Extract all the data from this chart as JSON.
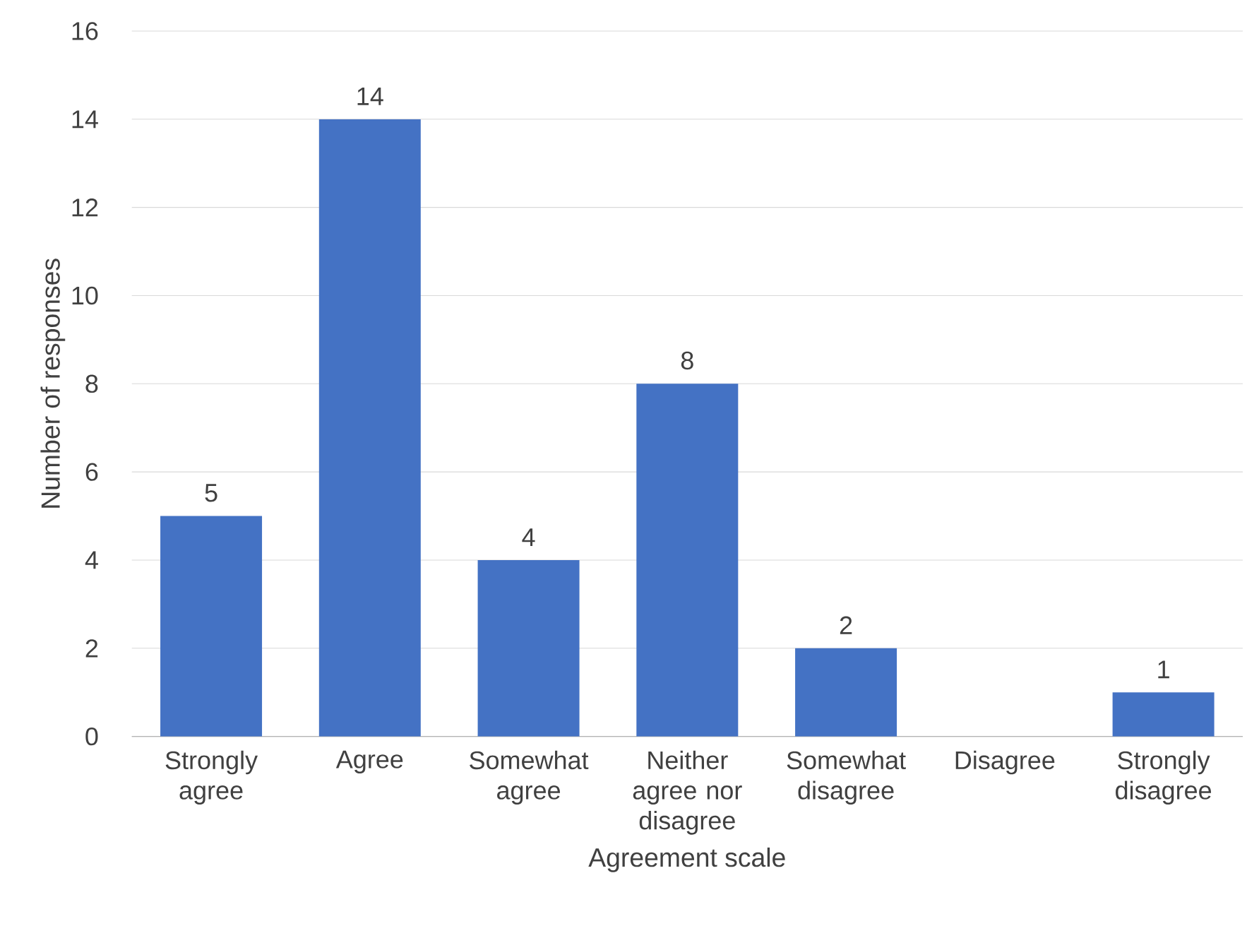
{
  "chart_data": {
    "type": "bar",
    "xlabel": "Agreement scale",
    "ylabel": "Number of responses",
    "categories": [
      "Strongly agree",
      "Agree",
      "Somewhat agree",
      "Neither agree nor disagree",
      "Somewhat disagree",
      "Disagree",
      "Strongly disagree"
    ],
    "values": [
      5,
      14,
      4,
      8,
      2,
      0,
      1
    ],
    "value_labels": [
      "5",
      "14",
      "4",
      "8",
      "2",
      null,
      "1"
    ],
    "color": "#4472c4",
    "ylim": [
      0,
      16
    ],
    "yticks": [
      0,
      2,
      4,
      6,
      8,
      10,
      12,
      14,
      16
    ],
    "grid": "y"
  }
}
